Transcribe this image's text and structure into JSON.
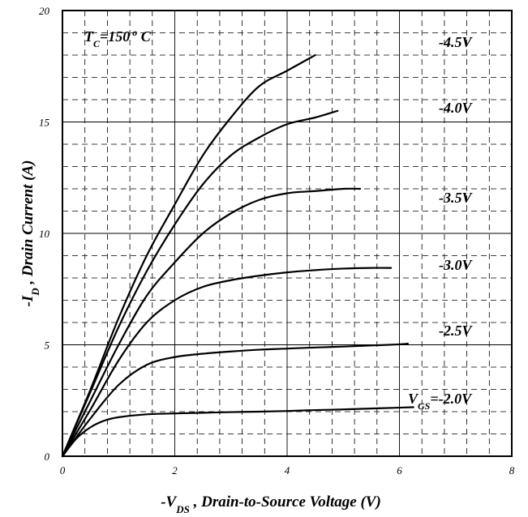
{
  "chart_data": {
    "type": "line",
    "title": "",
    "xlabel": {
      "prefix": "-V",
      "sub": "DS",
      "suffix": " , Drain-to-Source Voltage (V)"
    },
    "ylabel": {
      "prefix": "-I",
      "sub": "D",
      "suffix": " , Drain Current (A)"
    },
    "xlim": [
      0,
      8
    ],
    "ylim": [
      0,
      20
    ],
    "x_ticks": [
      "0",
      "2",
      "4",
      "6",
      "8"
    ],
    "y_ticks": [
      "0",
      "5",
      "10",
      "15",
      "20"
    ],
    "grid": {
      "major": "solid",
      "minor": "dashed",
      "minor_step_x": 0.4,
      "minor_step_y": 1
    },
    "temperature": {
      "prefix": "T",
      "sub": "C",
      "suffix": "=150",
      "sup": "o",
      "unit": " C"
    },
    "vgs_prefix": {
      "main": "V",
      "sub": "GS"
    },
    "series": [
      {
        "name": "-4.5V",
        "label": "-4.5V",
        "x": [
          0,
          0.5,
          1.0,
          1.5,
          2.0,
          2.5,
          3.0,
          3.5,
          4.0,
          4.5
        ],
        "y": [
          0,
          3.0,
          6.2,
          9.0,
          11.3,
          13.5,
          15.2,
          16.6,
          17.3,
          18.0
        ]
      },
      {
        "name": "-4.0V",
        "label": "-4.0V",
        "x": [
          0,
          0.5,
          1.0,
          1.5,
          2.0,
          2.5,
          3.0,
          3.5,
          4.0,
          4.5,
          4.9
        ],
        "y": [
          0,
          2.9,
          5.8,
          8.3,
          10.4,
          12.2,
          13.5,
          14.3,
          14.9,
          15.2,
          15.5
        ]
      },
      {
        "name": "-3.5V",
        "label": "-3.5V",
        "x": [
          0,
          0.5,
          1.0,
          1.5,
          2.0,
          2.5,
          3.0,
          3.5,
          4.0,
          4.5,
          5.0,
          5.3
        ],
        "y": [
          0,
          2.5,
          5.0,
          7.2,
          8.7,
          10.0,
          10.9,
          11.5,
          11.8,
          11.9,
          12.0,
          12.0
        ]
      },
      {
        "name": "-3.0V",
        "label": "-3.0V",
        "x": [
          0,
          0.5,
          1.0,
          1.5,
          2.0,
          2.5,
          3.0,
          3.5,
          4.0,
          4.5,
          5.0,
          5.5,
          5.85
        ],
        "y": [
          0,
          2.1,
          4.3,
          6.0,
          7.0,
          7.6,
          7.9,
          8.1,
          8.25,
          8.35,
          8.42,
          8.45,
          8.45
        ]
      },
      {
        "name": "-2.5V",
        "label": "-2.5V",
        "x": [
          0,
          0.5,
          1.0,
          1.5,
          2.0,
          2.5,
          3.0,
          3.5,
          4.0,
          4.5,
          5.0,
          5.5,
          6.0,
          6.15
        ],
        "y": [
          0,
          1.7,
          3.2,
          4.1,
          4.45,
          4.6,
          4.7,
          4.78,
          4.83,
          4.88,
          4.92,
          4.97,
          5.02,
          5.05
        ]
      },
      {
        "name": "-2.0V",
        "label": "=-2.0V",
        "x": [
          0,
          0.25,
          0.5,
          0.75,
          1.0,
          1.5,
          2.0,
          2.5,
          3.0,
          3.5,
          4.0,
          4.5,
          5.0,
          5.5,
          6.0,
          6.25
        ],
        "y": [
          0,
          0.8,
          1.3,
          1.6,
          1.75,
          1.88,
          1.92,
          1.95,
          1.98,
          2.0,
          2.03,
          2.07,
          2.1,
          2.14,
          2.18,
          2.2
        ]
      }
    ]
  }
}
